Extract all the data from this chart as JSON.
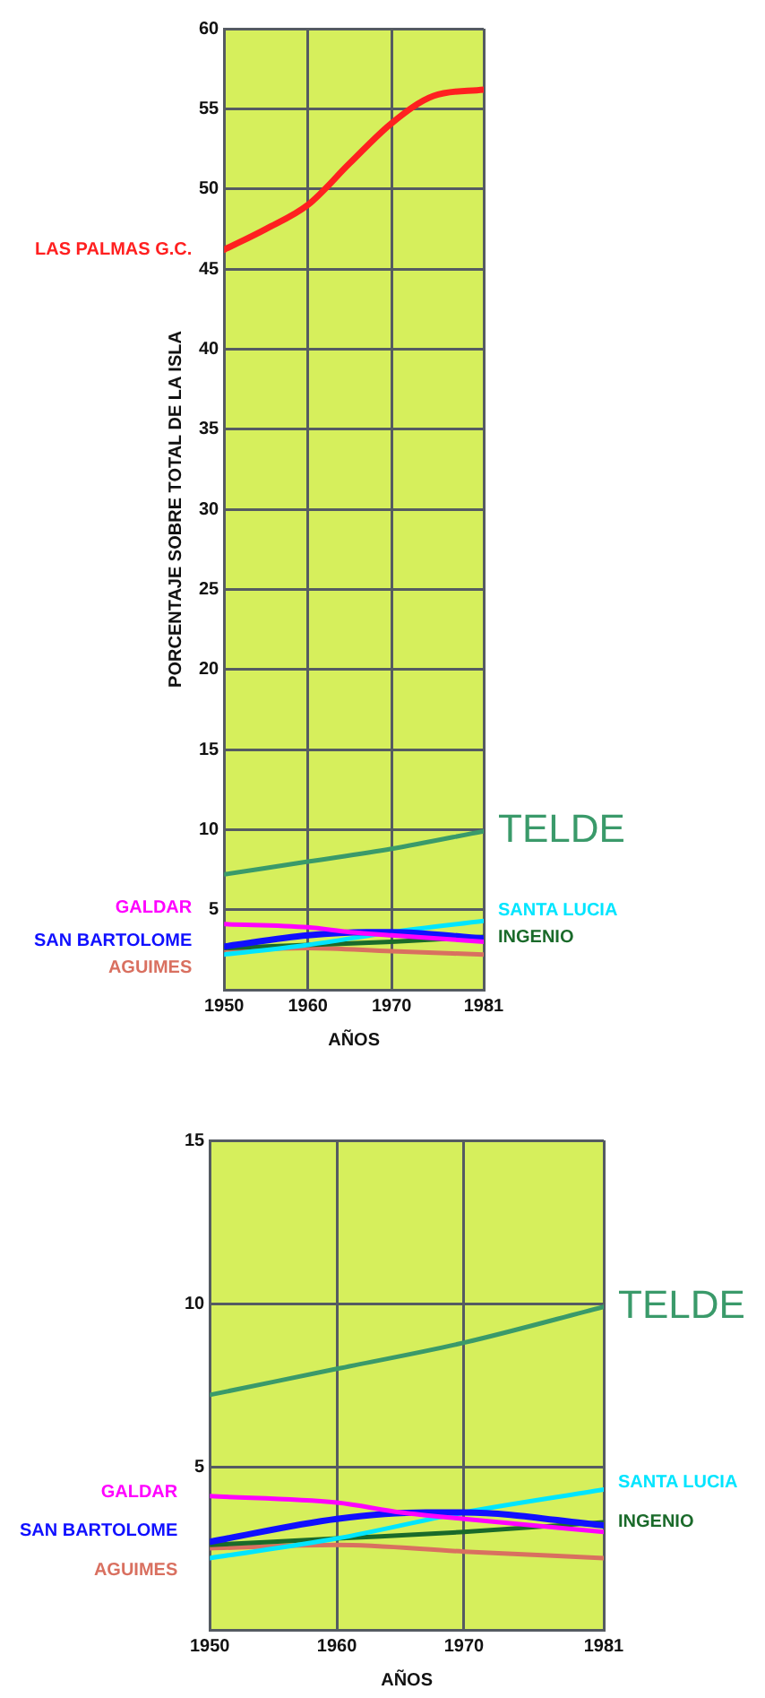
{
  "chart_data": [
    {
      "type": "line",
      "xlabel": "AÑOS",
      "ylabel": "PORCENTAJE SOBRE TOTAL DE LA ISLA",
      "xlim": [
        1950,
        1981
      ],
      "xticks": [
        1950,
        1960,
        1970,
        1981
      ],
      "ylim": [
        0,
        60
      ],
      "yticks": [
        5,
        10,
        15,
        20,
        25,
        30,
        35,
        40,
        45,
        50,
        55,
        60
      ],
      "grid": true,
      "marker": "none",
      "series": [
        {
          "name": "LAS PALMAS G.C.",
          "color": "#ff2020",
          "x": [
            1950,
            1955,
            1960,
            1965,
            1970,
            1975,
            1981
          ],
          "values": [
            46.2,
            47.5,
            49,
            51.6,
            54.1,
            55.8,
            56.2
          ]
        },
        {
          "name": "TELDE",
          "color": "#3a9a6a",
          "x": [
            1950,
            1960,
            1970,
            1981
          ],
          "values": [
            7.2,
            8,
            8.8,
            9.9
          ]
        },
        {
          "name": "GALDAR",
          "color": "#ff00ff",
          "x": [
            1950,
            1960,
            1965,
            1970,
            1981
          ],
          "values": [
            4.1,
            3.9,
            3.6,
            3.4,
            3
          ]
        },
        {
          "name": "SAN BARTOLOME",
          "color": "#1010ff",
          "x": [
            1950,
            1960,
            1967,
            1970,
            1981
          ],
          "values": [
            2.7,
            3.4,
            3.6,
            3.6,
            3.2
          ]
        },
        {
          "name": "SANTA LUCIA",
          "color": "#00e5ff",
          "x": [
            1950,
            1960,
            1970,
            1981
          ],
          "values": [
            2.2,
            2.8,
            3.6,
            4.3
          ]
        },
        {
          "name": "INGENIO",
          "color": "#1a6a2a",
          "x": [
            1950,
            1960,
            1970,
            1981
          ],
          "values": [
            2.6,
            2.8,
            3,
            3.3
          ]
        },
        {
          "name": "AGUIMES",
          "color": "#d97060",
          "x": [
            1950,
            1960,
            1970,
            1981
          ],
          "values": [
            2.5,
            2.6,
            2.4,
            2.2
          ]
        }
      ]
    },
    {
      "type": "line",
      "xlabel": "AÑOS",
      "xlim": [
        1950,
        1981
      ],
      "xticks": [
        1950,
        1960,
        1970,
        1981
      ],
      "ylim": [
        0,
        15
      ],
      "yticks": [
        5,
        10,
        15
      ],
      "grid": true,
      "marker": "none",
      "series": [
        {
          "name": "TELDE",
          "color": "#3a9a6a",
          "x": [
            1950,
            1960,
            1970,
            1981
          ],
          "values": [
            7.2,
            8,
            8.8,
            9.9
          ]
        },
        {
          "name": "GALDAR",
          "color": "#ff00ff",
          "x": [
            1950,
            1960,
            1965,
            1970,
            1981
          ],
          "values": [
            4.1,
            3.9,
            3.6,
            3.4,
            3
          ]
        },
        {
          "name": "SAN BARTOLOME",
          "color": "#1010ff",
          "x": [
            1950,
            1960,
            1967,
            1970,
            1981
          ],
          "values": [
            2.7,
            3.4,
            3.6,
            3.6,
            3.2
          ]
        },
        {
          "name": "SANTA LUCIA",
          "color": "#00e5ff",
          "x": [
            1950,
            1960,
            1970,
            1981
          ],
          "values": [
            2.2,
            2.8,
            3.6,
            4.3
          ]
        },
        {
          "name": "INGENIO",
          "color": "#1a6a2a",
          "x": [
            1950,
            1960,
            1970,
            1981
          ],
          "values": [
            2.6,
            2.8,
            3,
            3.3
          ]
        },
        {
          "name": "AGUIMES",
          "color": "#d97060",
          "x": [
            1950,
            1960,
            1970,
            1981
          ],
          "values": [
            2.5,
            2.6,
            2.4,
            2.2
          ]
        }
      ]
    }
  ]
}
